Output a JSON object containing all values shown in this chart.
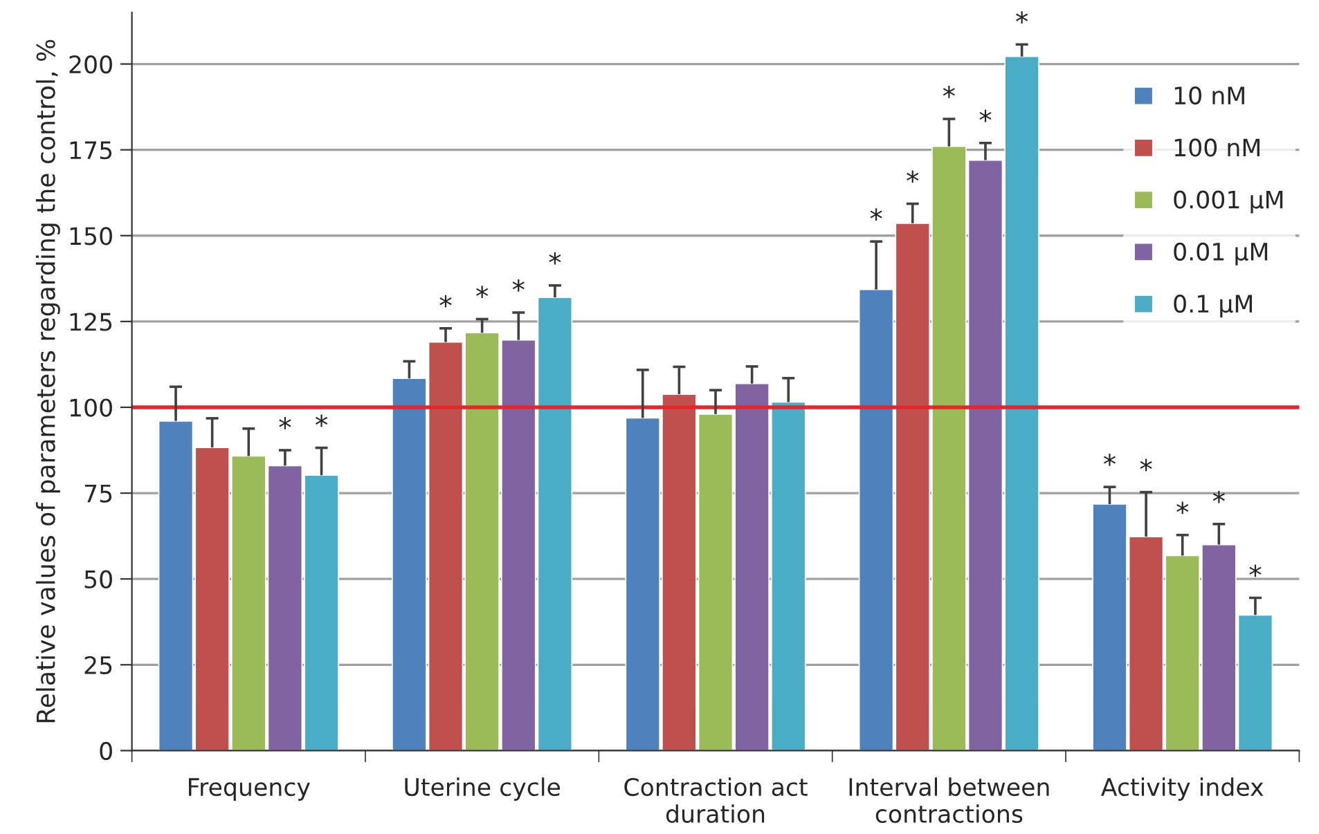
{
  "chart_data": {
    "type": "bar",
    "ylabel": "Relative values of parameters regarding the control, %",
    "categories": [
      "Frequency",
      "Uterine cycle",
      "Contraction act\nduration",
      "Interval between\ncontractions",
      "Activity index"
    ],
    "series": [
      {
        "name": "10 nM",
        "color": "#4f81bd",
        "values": [
          96,
          108.4,
          96.9,
          134.3,
          71.8
        ],
        "errors": [
          [
            96,
            106
          ],
          [
            108.4,
            113.4
          ],
          [
            96.9,
            110.9
          ],
          [
            134.3,
            148.3
          ],
          [
            71.8,
            76.8
          ]
        ],
        "value_labels": [
          null,
          null,
          null,
          "*",
          "*"
        ]
      },
      {
        "name": "100 nM",
        "color": "#c0504d",
        "values": [
          88.3,
          119,
          103.8,
          153.6,
          62.3
        ],
        "errors": [
          [
            88.3,
            96.8
          ],
          [
            119,
            123
          ],
          [
            103.8,
            111.8
          ],
          [
            153.6,
            159.3
          ],
          [
            62.3,
            75.3
          ]
        ],
        "value_labels": [
          null,
          "*",
          null,
          "*",
          "*"
        ]
      },
      {
        "name": "0.001 μM",
        "color": "#9bbb59",
        "values": [
          85.8,
          121.7,
          98,
          176,
          56.8
        ],
        "errors": [
          [
            85.8,
            93.8
          ],
          [
            121.7,
            125.7
          ],
          [
            98,
            105
          ],
          [
            176,
            184
          ],
          [
            56.8,
            62.8
          ]
        ],
        "value_labels": [
          null,
          "*",
          null,
          "*",
          "*"
        ]
      },
      {
        "name": "0.01 μM",
        "color": "#8064a2",
        "values": [
          83,
          119.6,
          106.9,
          172,
          60
        ],
        "errors": [
          [
            83,
            87.5
          ],
          [
            119.6,
            127.6
          ],
          [
            106.9,
            111.9
          ],
          [
            172,
            177
          ],
          [
            60,
            66
          ]
        ],
        "value_labels": [
          "*",
          "*",
          null,
          "*",
          "*"
        ]
      },
      {
        "name": "0.1 μM",
        "color": "#4bacc6",
        "values": [
          80.2,
          132,
          101.5,
          202.2,
          39.5
        ],
        "errors": [
          [
            80.2,
            88.2
          ],
          [
            132,
            135.5
          ],
          [
            101.5,
            108.5
          ],
          [
            202.2,
            205.7
          ],
          [
            39.5,
            44.5
          ]
        ],
        "value_labels": [
          "*",
          "*",
          null,
          "*",
          "*"
        ]
      }
    ],
    "ylim": [
      0,
      215
    ],
    "yticks": [
      0,
      25,
      50,
      75,
      100,
      125,
      150,
      175,
      200
    ],
    "ref_lines": [
      {
        "axis": "y",
        "value": 100,
        "color": "#e8262a"
      }
    ],
    "grid": "y",
    "legend": "top right"
  }
}
